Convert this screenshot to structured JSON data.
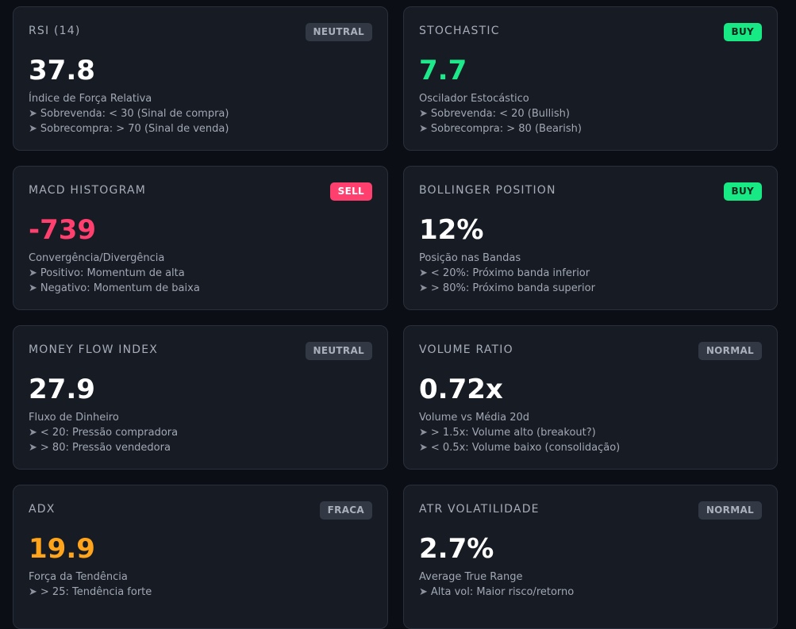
{
  "cards": [
    {
      "title": "RSI (14)",
      "badge": "NEUTRAL",
      "value": "37.8",
      "description": "Índice de Força Relativa",
      "lines": [
        "Sobrevenda: < 30 (Sinal de compra)",
        "Sobrecompra: > 70 (Sinal de venda)"
      ]
    },
    {
      "title": "STOCHASTIC",
      "badge": "BUY",
      "value": "7.7",
      "description": "Oscilador Estocástico",
      "lines": [
        "Sobrevenda: < 20 (Bullish)",
        "Sobrecompra: > 80 (Bearish)"
      ]
    },
    {
      "title": "MACD HISTOGRAM",
      "badge": "SELL",
      "value": "-739",
      "description": "Convergência/Divergência",
      "lines": [
        "Positivo: Momentum de alta",
        "Negativo: Momentum de baixa"
      ]
    },
    {
      "title": "BOLLINGER POSITION",
      "badge": "BUY",
      "value": "12%",
      "description": "Posição nas Bandas",
      "lines": [
        "< 20%: Próximo banda inferior",
        "> 80%: Próximo banda superior"
      ]
    },
    {
      "title": "MONEY FLOW INDEX",
      "badge": "NEUTRAL",
      "value": "27.9",
      "description": "Fluxo de Dinheiro",
      "lines": [
        "< 20: Pressão compradora",
        "> 80: Pressão vendedora"
      ]
    },
    {
      "title": "VOLUME RATIO",
      "badge": "NORMAL",
      "value": "0.72x",
      "description": "Volume vs Média 20d",
      "lines": [
        "> 1.5x: Volume alto (breakout?)",
        "< 0.5x: Volume baixo (consolidação)"
      ]
    },
    {
      "title": "ADX",
      "badge": "FRACA",
      "value": "19.9",
      "description": "Força da Tendência",
      "lines": [
        "> 25: Tendência forte",
        ""
      ]
    },
    {
      "title": "ATR VOLATILIDADE",
      "badge": "NORMAL",
      "value": "2.7%",
      "description": "Average True Range",
      "lines": [
        "Alta vol: Maior risco/retorno",
        ""
      ]
    }
  ],
  "arrow_glyph": "➤"
}
